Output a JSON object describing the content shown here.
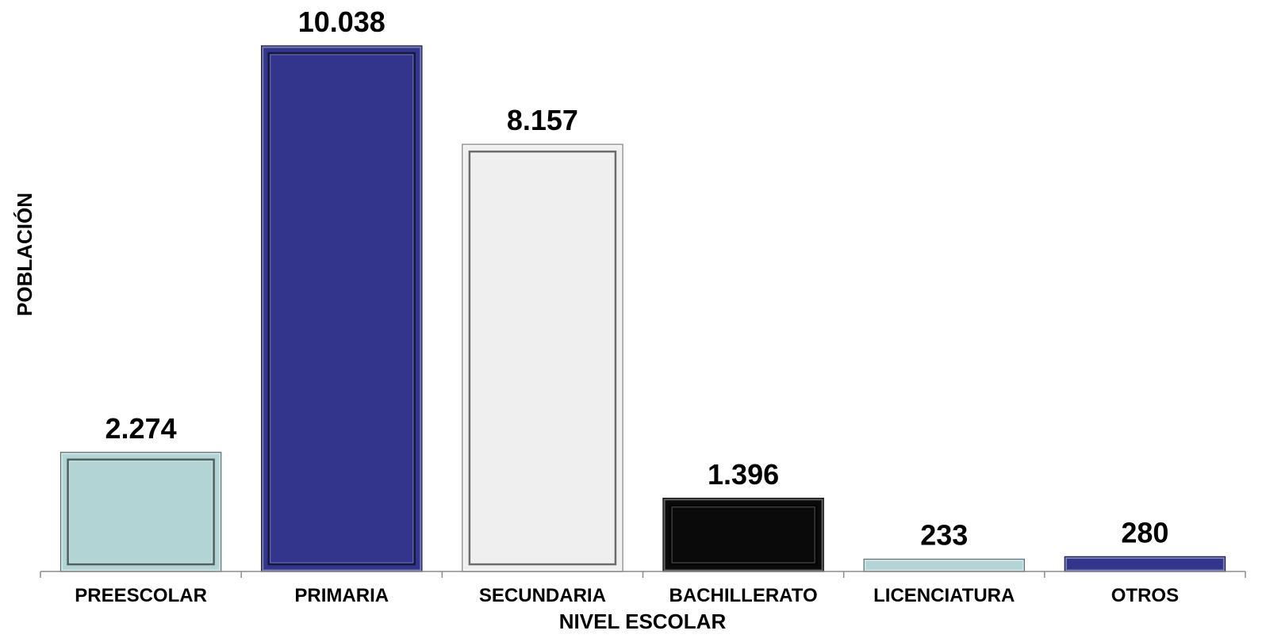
{
  "chart_data": {
    "type": "bar",
    "title": "",
    "xlabel": "NIVEL ESCOLAR",
    "ylabel": "POBLACIÓN",
    "categories": [
      "PREESCOLAR",
      "PRIMARIA",
      "SECUNDARIA",
      "BACHILLERATO",
      "LICENCIATURA",
      "OTROS"
    ],
    "values": [
      2274,
      10038,
      8157,
      1396,
      233,
      280
    ],
    "value_labels": [
      "2.274",
      "10.038",
      "8.157",
      "1.396",
      "233",
      "280"
    ],
    "bar_colors": [
      "#b2d4d5",
      "#33358c",
      "#efefef",
      "#0a0a0a",
      "#b2d4d5",
      "#33358c"
    ],
    "ylim": [
      0,
      10038
    ],
    "grid": false,
    "legend": "none"
  }
}
